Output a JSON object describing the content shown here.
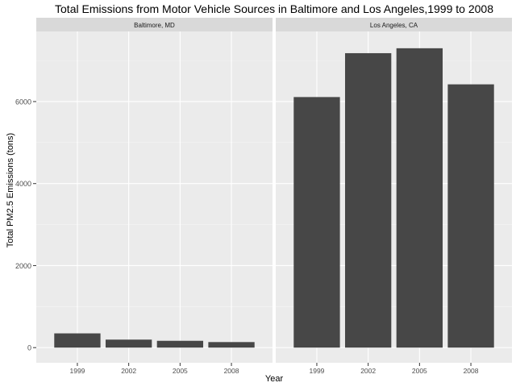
{
  "chart_data": {
    "type": "bar",
    "title": "Total Emissions from Motor Vehicle Sources in Baltimore and Los Angeles,1999 to 2008",
    "xlabel": "Year",
    "ylabel": "Total PM2.5 Emissions (tons)",
    "categories": [
      "1999",
      "2002",
      "2005",
      "2008"
    ],
    "ylim": [
      -370,
      7710
    ],
    "yticks": [
      0,
      2000,
      4000,
      6000
    ],
    "grid": true,
    "legend": "none",
    "colors": {
      "bar": "#474747",
      "panel": "#ebebeb",
      "strip": "#d9d9d9",
      "grid_major": "#ffffff"
    },
    "panels": [
      {
        "label": "Baltimore, MD",
        "values": [
          347,
          195,
          166,
          135
        ]
      },
      {
        "label": "Los Angeles, CA",
        "values": [
          6110,
          7180,
          7300,
          6420
        ]
      }
    ]
  }
}
